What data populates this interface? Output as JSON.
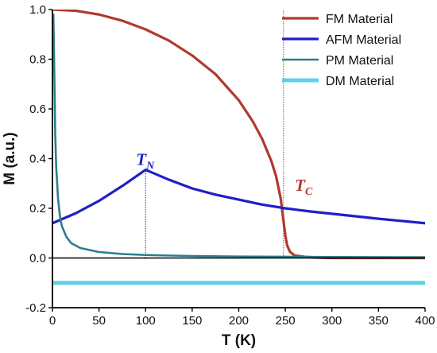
{
  "chart_data": {
    "type": "line",
    "title": "",
    "xlabel": "T (K)",
    "ylabel": "M (a.u.)",
    "xlim": [
      0,
      400
    ],
    "ylim": [
      -0.2,
      1.0
    ],
    "x_ticks": [
      0,
      50,
      100,
      150,
      200,
      250,
      300,
      350,
      400
    ],
    "y_ticks": [
      -0.2,
      0.0,
      0.2,
      0.4,
      0.6,
      0.8,
      1.0
    ],
    "x_tick_labels": [
      "0",
      "50",
      "100",
      "150",
      "200",
      "250",
      "300",
      "350",
      "400"
    ],
    "y_tick_labels": [
      "-0.2",
      "0.0",
      "0.2",
      "0.4",
      "0.6",
      "0.8",
      "1.0"
    ],
    "grid": false,
    "legend_position": "top-right",
    "series": [
      {
        "name": "FM Material",
        "color": "#b03a2e",
        "x": [
          0,
          25,
          50,
          75,
          100,
          125,
          150,
          175,
          200,
          215,
          225,
          235,
          240,
          245,
          248,
          250,
          252,
          255,
          260,
          270,
          280,
          300,
          350,
          400
        ],
        "y": [
          1.0,
          0.995,
          0.98,
          0.955,
          0.92,
          0.875,
          0.815,
          0.74,
          0.635,
          0.55,
          0.48,
          0.39,
          0.33,
          0.24,
          0.15,
          0.09,
          0.05,
          0.025,
          0.01,
          0.005,
          0.002,
          0.0,
          0.0,
          0.0
        ]
      },
      {
        "name": "AFM Material",
        "color": "#1f1fc8",
        "x": [
          0,
          25,
          50,
          75,
          100,
          125,
          150,
          175,
          200,
          225,
          250,
          275,
          300,
          325,
          350,
          375,
          400
        ],
        "y": [
          0.14,
          0.18,
          0.23,
          0.29,
          0.355,
          0.315,
          0.28,
          0.255,
          0.235,
          0.215,
          0.2,
          0.188,
          0.178,
          0.168,
          0.158,
          0.149,
          0.14
        ]
      },
      {
        "name": "PM Material",
        "color": "#2a7f8f",
        "x": [
          1,
          2,
          3,
          4,
          6,
          8,
          10,
          15,
          20,
          30,
          50,
          75,
          100,
          150,
          200,
          300,
          400
        ],
        "y": [
          0.98,
          0.75,
          0.5,
          0.37,
          0.24,
          0.17,
          0.13,
          0.085,
          0.06,
          0.04,
          0.024,
          0.016,
          0.012,
          0.008,
          0.006,
          0.004,
          0.003
        ]
      },
      {
        "name": "DM Material",
        "color": "#5fd0e8",
        "x": [
          0,
          400
        ],
        "y": [
          -0.1,
          -0.1
        ]
      }
    ],
    "annotations": [
      {
        "main": "T",
        "sub": "N",
        "x": 100,
        "color": "#1f1fc8"
      },
      {
        "main": "T",
        "sub": "C",
        "x": 250,
        "color": "#b03a2e"
      }
    ],
    "reference_lines": [
      {
        "x": 100,
        "y_from": 0,
        "y_to": 0.355,
        "color": "#1f1fc8"
      },
      {
        "x": 248,
        "y_from": 0,
        "y_to": 1.0,
        "color": "#c0392b"
      }
    ],
    "zero_line": 0
  }
}
